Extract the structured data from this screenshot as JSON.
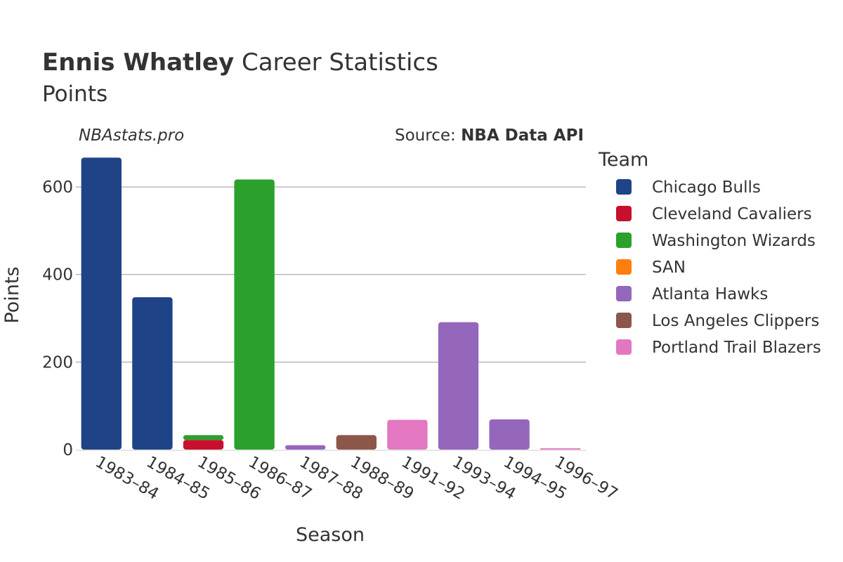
{
  "header": {
    "title_bold": "Ennis Whatley",
    "title_rest": " Career Statistics",
    "subtitle": "Points",
    "watermark": "NBAstats.pro",
    "source_prefix": "Source: ",
    "source_name": "NBA Data API"
  },
  "legend": {
    "title": "Team"
  },
  "chart_data": {
    "type": "bar",
    "stacked": true,
    "xlabel": "Season",
    "ylabel": "Points",
    "ylim": [
      0,
      690
    ],
    "yticks": [
      0,
      200,
      400,
      600
    ],
    "grid": true,
    "legend_position": "right",
    "categories": [
      "1983–84",
      "1984–85",
      "1985–86",
      "1986–87",
      "1987–88",
      "1988–89",
      "1991–92",
      "1993–94",
      "1994–95",
      "1996–97"
    ],
    "series": [
      {
        "name": "Chicago Bulls",
        "color": "#1f4387",
        "values": [
          667,
          348,
          0,
          0,
          0,
          0,
          0,
          0,
          0,
          0
        ]
      },
      {
        "name": "Cleveland Cavaliers",
        "color": "#c8102e",
        "values": [
          0,
          0,
          22,
          0,
          0,
          0,
          0,
          0,
          0,
          0
        ]
      },
      {
        "name": "Washington Wizards",
        "color": "#2ca02c",
        "values": [
          0,
          0,
          11,
          617,
          0,
          0,
          0,
          0,
          0,
          0
        ]
      },
      {
        "name": "SAN",
        "color": "#ff7f0e",
        "values": [
          0,
          0,
          0,
          0,
          0,
          0,
          0,
          0,
          0,
          0
        ]
      },
      {
        "name": "Atlanta Hawks",
        "color": "#9467bd",
        "values": [
          0,
          0,
          0,
          0,
          10,
          0,
          0,
          291,
          69,
          0
        ]
      },
      {
        "name": "Los Angeles Clippers",
        "color": "#8c564b",
        "values": [
          0,
          0,
          0,
          0,
          0,
          33,
          0,
          0,
          0,
          0
        ]
      },
      {
        "name": "Portland Trail Blazers",
        "color": "#e377c2",
        "values": [
          0,
          0,
          0,
          0,
          0,
          0,
          68,
          0,
          0,
          3
        ]
      }
    ]
  }
}
